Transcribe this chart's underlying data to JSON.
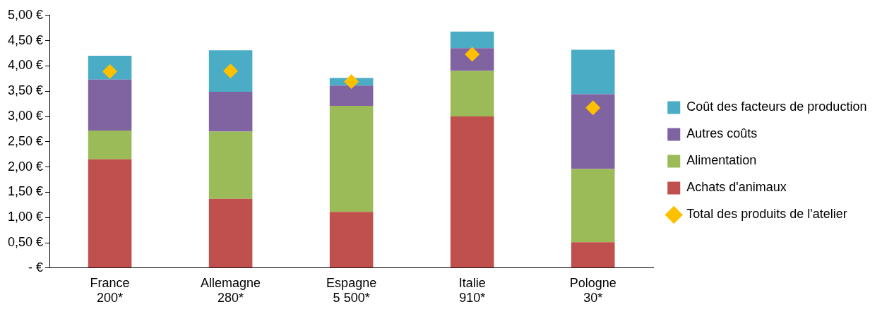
{
  "chart_data": {
    "type": "bar",
    "stacked": true,
    "categories": [
      "France\n200*",
      "Allemagne\n280*",
      "Espagne\n5 500*",
      "Italie\n910*",
      "Pologne\n30*"
    ],
    "series": [
      {
        "name": "Achats d'animaux",
        "color": "#c0504d",
        "values": [
          2.15,
          1.37,
          1.11,
          3.0,
          0.51
        ]
      },
      {
        "name": "Alimentation",
        "color": "#9bbb59",
        "values": [
          0.57,
          1.33,
          2.1,
          0.9,
          1.45
        ]
      },
      {
        "name": "Autres coûts",
        "color": "#8064a2",
        "values": [
          1.01,
          0.79,
          0.4,
          0.45,
          1.48
        ]
      },
      {
        "name": "Coût des facteurs de production",
        "color": "#4bacc6",
        "values": [
          0.47,
          0.82,
          0.15,
          0.33,
          0.88
        ]
      },
      {
        "name": "Total des produits de l'atelier",
        "type": "scatter",
        "marker": "diamond",
        "color": "#ffc000",
        "x": [
          "France\n200*",
          "Allemagne\n280*",
          "Espagne\n5 500*",
          "Italie\n910*",
          "Pologne\n30*"
        ],
        "values": [
          3.89,
          3.9,
          3.69,
          4.23,
          3.17
        ]
      }
    ],
    "ylim": [
      0,
      5
    ],
    "yticks": [
      {
        "value": 0,
        "label": "- €"
      },
      {
        "value": 0.5,
        "label": "0,50 €"
      },
      {
        "value": 1,
        "label": "1,00 €"
      },
      {
        "value": 1.5,
        "label": "1,50 €"
      },
      {
        "value": 2,
        "label": "2,00 €"
      },
      {
        "value": 2.5,
        "label": "2,50 €"
      },
      {
        "value": 3,
        "label": "3,00 €"
      },
      {
        "value": 3.5,
        "label": "3,50 €"
      },
      {
        "value": 4,
        "label": "4,00 €"
      },
      {
        "value": 4.5,
        "label": "4,50 €"
      },
      {
        "value": 5,
        "label": "5,00 €"
      }
    ],
    "grid": false,
    "legend": "right"
  }
}
